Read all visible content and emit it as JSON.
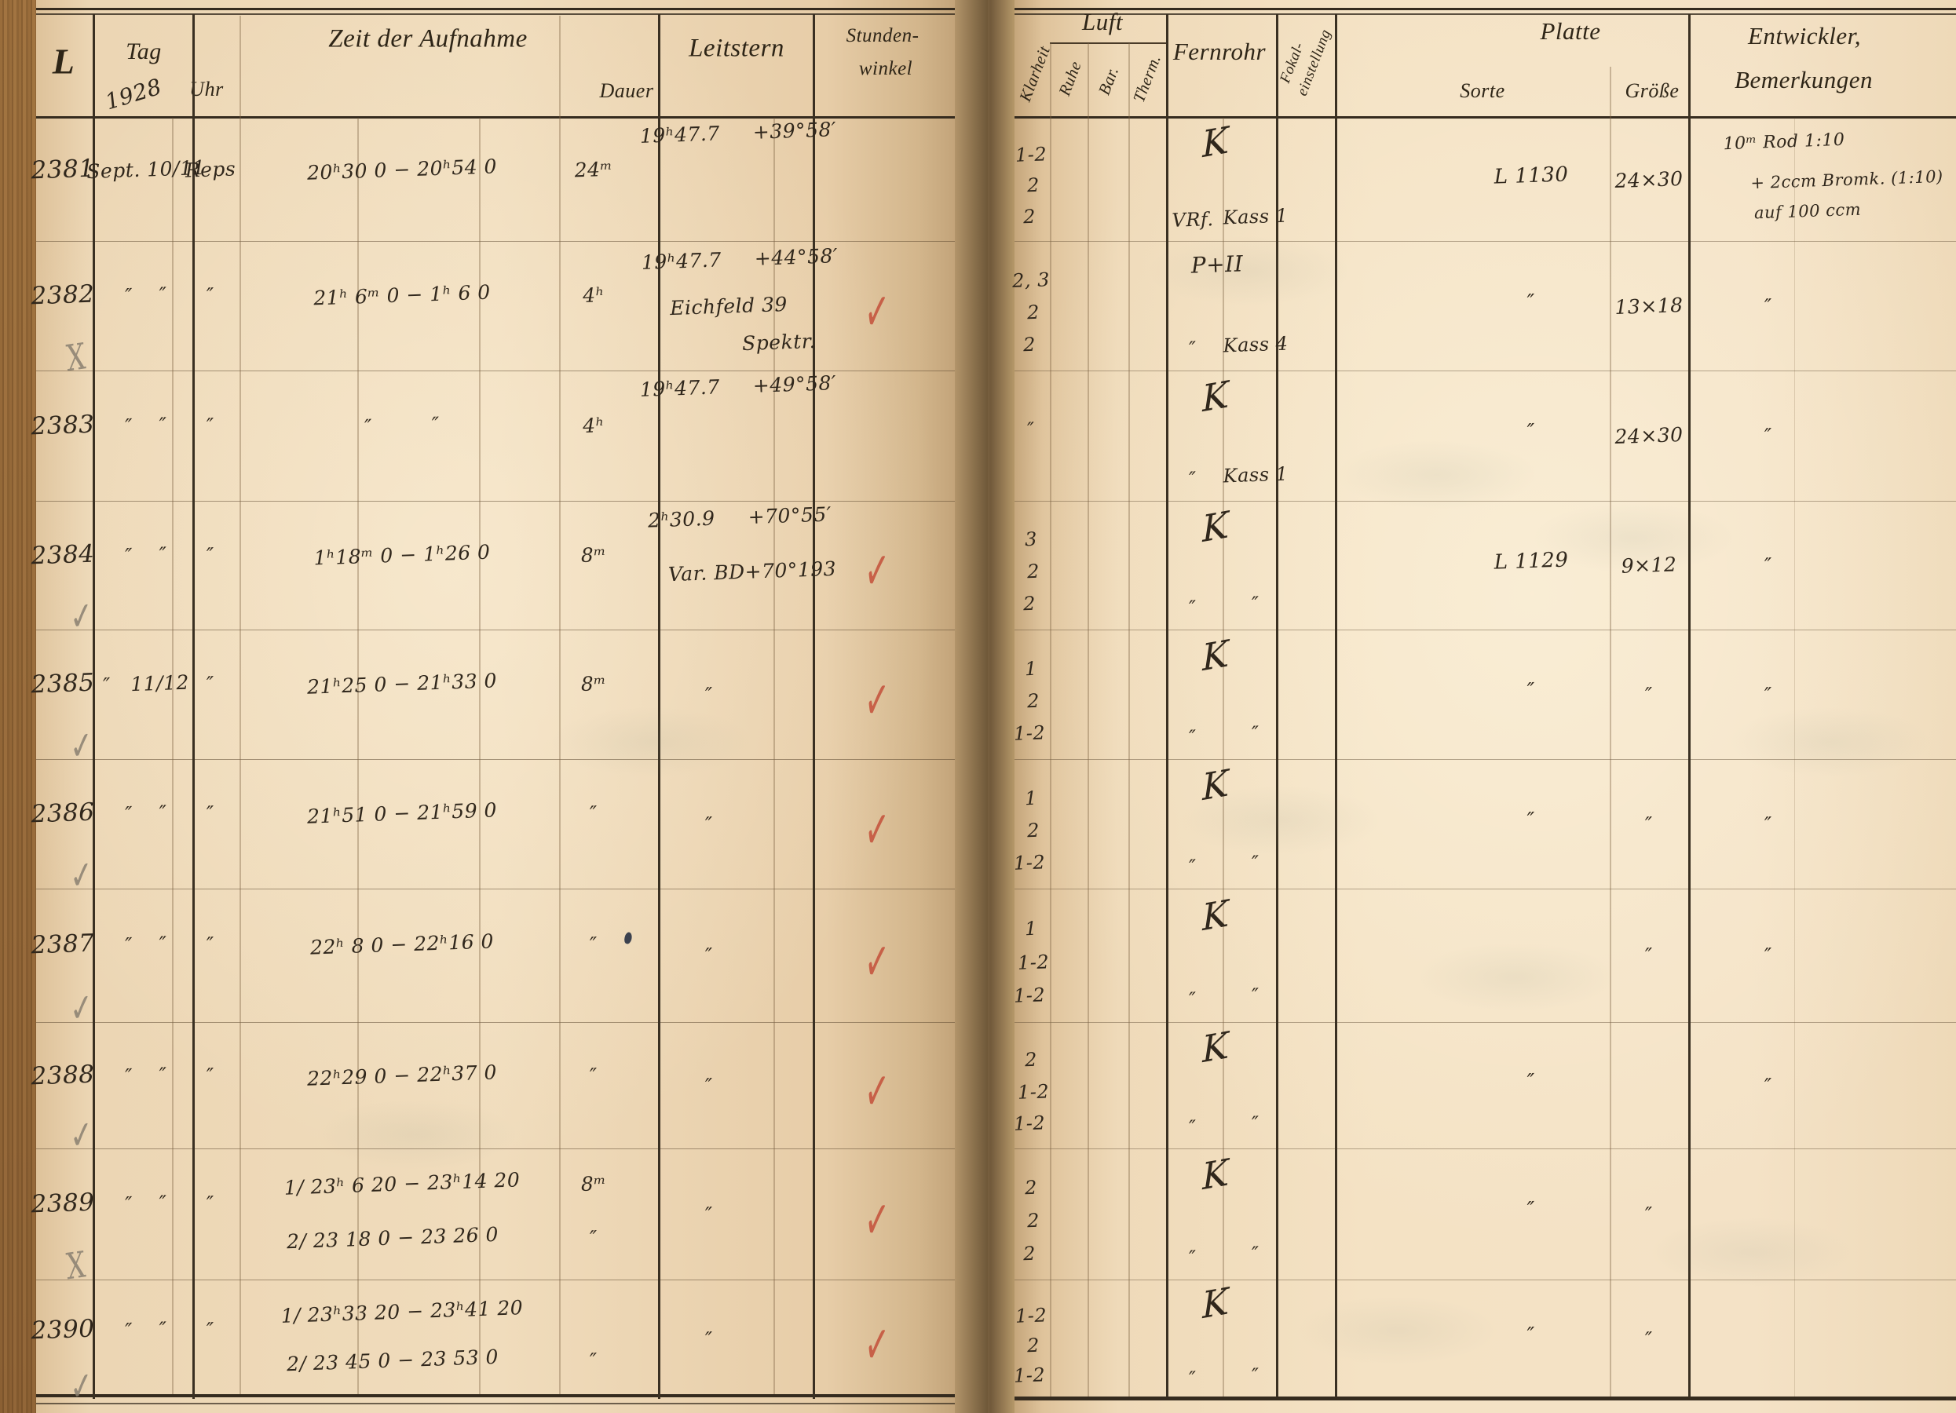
{
  "document": {
    "kind": "astronomical observation logbook spread",
    "year_handwritten": "1928"
  },
  "glyphs": {
    "ditto": "″",
    "check": "✓",
    "cross": "X"
  },
  "colors": {
    "ink": "#30271c",
    "printed": "#2e2517",
    "red_check": "#c4503a",
    "pencil": "#8a8071",
    "paper_left": "#f0dcbc",
    "paper_right": "#f4e2c4"
  },
  "left_header": {
    "l": "L",
    "tag": "Tag",
    "year": "1928",
    "zeit": "Zeit der Aufnahme",
    "uhr": "Uhr",
    "dauer": "Dauer",
    "leitstern": "Leitstern",
    "stundenwinkel_1": "Stunden-",
    "stundenwinkel_2": "winkel"
  },
  "right_header": {
    "luft": "Luft",
    "klarheit": "Klarheit",
    "ruhe": "Ruhe",
    "bar": "Bar.",
    "therm": "Therm.",
    "fernrohr": "Fernrohr",
    "fokal_1": "Fokal-",
    "fokal_2": "einstellung",
    "platte": "Platte",
    "sorte": "Sorte",
    "groesse": "Größe",
    "entwickler_1": "Entwickler,",
    "entwickler_2": "Bemerkungen"
  },
  "rows": [
    {
      "no": "2381",
      "mark": "",
      "tag": "Sept. 10/11",
      "uhr": "Reps",
      "zeit": [
        "20ʰ30 0 − 20ʰ54 0"
      ],
      "dauer": [
        "24ᵐ"
      ],
      "leitstern": [
        "19ʰ47.7     +39°58′"
      ],
      "check": false,
      "klarheit": [
        "1-2",
        "2",
        "2"
      ],
      "fernrohr": {
        "main": "K",
        "left": "VRf.",
        "right": "Kass 1"
      },
      "sorte": "L 1130",
      "groesse": "24×30",
      "entwickler": [
        "10ᵐ Rod 1:10",
        "+ 2ccm Bromk. (1:10)",
        "auf 100 ccm"
      ]
    },
    {
      "no": "2382",
      "mark": "x",
      "tag": "″    ″",
      "uhr": "″",
      "zeit": [
        "21ʰ 6ᵐ 0 − 1ʰ 6 0"
      ],
      "dauer": [
        "4ʰ"
      ],
      "leitstern": [
        "19ʰ47.7     +44°58′",
        "Eichfeld 39",
        "Spektr."
      ],
      "check": true,
      "klarheit": [
        "2, 3",
        "2",
        "2"
      ],
      "fernrohr": {
        "main": "P+II",
        "left": "″",
        "right": "Kass 4"
      },
      "sorte": "″",
      "groesse": "13×18",
      "entwickler": [
        "″"
      ]
    },
    {
      "no": "2383",
      "mark": "",
      "tag": "″    ″",
      "uhr": "″",
      "zeit": [
        "″         ″"
      ],
      "dauer": [
        "4ʰ"
      ],
      "leitstern": [
        "19ʰ47.7     +49°58′"
      ],
      "check": false,
      "klarheit": [
        "″"
      ],
      "fernrohr": {
        "main": "K",
        "left": "″",
        "right": "Kass 1"
      },
      "sorte": "″",
      "groesse": "24×30",
      "entwickler": [
        "″"
      ]
    },
    {
      "no": "2384",
      "mark": "check",
      "tag": "″    ″",
      "uhr": "″",
      "zeit": [
        "1ʰ18ᵐ 0 − 1ʰ26 0"
      ],
      "dauer": [
        "8ᵐ"
      ],
      "leitstern": [
        "2ʰ30.9     +70°55′",
        "Var. BD+70°193"
      ],
      "check": true,
      "klarheit": [
        "3",
        "2",
        "2"
      ],
      "fernrohr": {
        "main": "K",
        "left": "″",
        "right": "″"
      },
      "sorte": "L 1129",
      "groesse": "9×12",
      "entwickler": [
        "″"
      ]
    },
    {
      "no": "2385",
      "mark": "check",
      "tag": "″   11/12",
      "uhr": "″",
      "zeit": [
        "21ʰ25 0 − 21ʰ33 0"
      ],
      "dauer": [
        "8ᵐ"
      ],
      "leitstern": [
        "″"
      ],
      "check": true,
      "klarheit": [
        "1",
        "2",
        "1-2"
      ],
      "fernrohr": {
        "main": "K",
        "left": "″",
        "right": "″"
      },
      "sorte": "″",
      "groesse": "″",
      "entwickler": [
        "″"
      ]
    },
    {
      "no": "2386",
      "mark": "check",
      "tag": "″    ″",
      "uhr": "″",
      "zeit": [
        "21ʰ51 0 − 21ʰ59 0"
      ],
      "dauer": [
        "″"
      ],
      "leitstern": [
        "″"
      ],
      "check": true,
      "klarheit": [
        "1",
        "2",
        "1-2"
      ],
      "fernrohr": {
        "main": "K",
        "left": "″",
        "right": "″"
      },
      "sorte": "″",
      "groesse": "″",
      "entwickler": [
        "″"
      ]
    },
    {
      "no": "2387",
      "mark": "check",
      "tag": "″    ″",
      "uhr": "″",
      "zeit": [
        "22ʰ 8 0 − 22ʰ16 0"
      ],
      "dauer": [
        "″"
      ],
      "leitstern": [
        "″"
      ],
      "check": true,
      "blot": true,
      "klarheit": [
        "1",
        "1-2",
        "1-2"
      ],
      "fernrohr": {
        "main": "K",
        "left": "″",
        "right": "″"
      },
      "sorte": "",
      "groesse": "″",
      "entwickler": [
        "″"
      ]
    },
    {
      "no": "2388",
      "mark": "check",
      "tag": "″    ″",
      "uhr": "″",
      "zeit": [
        "22ʰ29 0 − 22ʰ37 0"
      ],
      "dauer": [
        "″"
      ],
      "leitstern": [
        "″"
      ],
      "check": true,
      "klarheit": [
        "2",
        "1-2",
        "1-2"
      ],
      "fernrohr": {
        "main": "K",
        "left": "″",
        "right": "″"
      },
      "sorte": "″",
      "groesse": "",
      "entwickler": [
        "″"
      ]
    },
    {
      "no": "2389",
      "mark": "x",
      "tag": "″    ″",
      "uhr": "″",
      "zeit": [
        "1/ 23ʰ 6 20 − 23ʰ14 20",
        "2/ 23 18 0 − 23 26 0"
      ],
      "dauer": [
        "8ᵐ",
        "″"
      ],
      "leitstern": [
        "″"
      ],
      "check": true,
      "klarheit": [
        "2",
        "2",
        "2"
      ],
      "fernrohr": {
        "main": "K",
        "left": "″",
        "right": "″"
      },
      "sorte": "″",
      "groesse": "″",
      "entwickler": []
    },
    {
      "no": "2390",
      "mark": "check",
      "tag": "″    ″",
      "uhr": "″",
      "zeit": [
        "1/ 23ʰ33 20 − 23ʰ41 20",
        "2/ 23 45 0 − 23 53 0"
      ],
      "dauer": [
        "",
        "″"
      ],
      "leitstern": [
        "″"
      ],
      "check": true,
      "klarheit": [
        "1-2",
        "2",
        "1-2"
      ],
      "fernrohr": {
        "main": "K",
        "left": "″",
        "right": "″"
      },
      "sorte": "″",
      "groesse": "″",
      "entwickler": []
    }
  ]
}
